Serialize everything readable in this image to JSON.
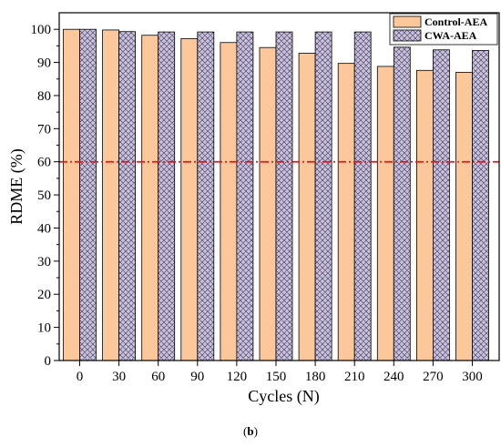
{
  "chart_data": {
    "type": "bar",
    "xlabel": "Cycles (N)",
    "ylabel": "RDME (%)",
    "ylim": [
      0,
      105
    ],
    "yticks": [
      0,
      10,
      20,
      30,
      40,
      50,
      60,
      70,
      80,
      90,
      100
    ],
    "categories": [
      "0",
      "30",
      "60",
      "90",
      "120",
      "150",
      "180",
      "210",
      "240",
      "270",
      "300"
    ],
    "series": [
      {
        "name": "Control-AEA",
        "color": "#fcc89b",
        "values": [
          100,
          99.8,
          98.2,
          97.2,
          96.0,
          94.5,
          92.8,
          89.7,
          88.8,
          87.6,
          87.0
        ]
      },
      {
        "name": "CWA-AEA",
        "color": "#c8c0dc",
        "values": [
          100,
          99.3,
          99.2,
          99.2,
          99.2,
          99.2,
          99.2,
          99.2,
          94.6,
          93.8,
          93.6
        ]
      }
    ],
    "reference_line": {
      "y": 60,
      "color": "#e8141c"
    },
    "legend_position": "top-right",
    "grid": false
  },
  "caption": {
    "open": "(",
    "label": "b",
    "close": ")"
  }
}
